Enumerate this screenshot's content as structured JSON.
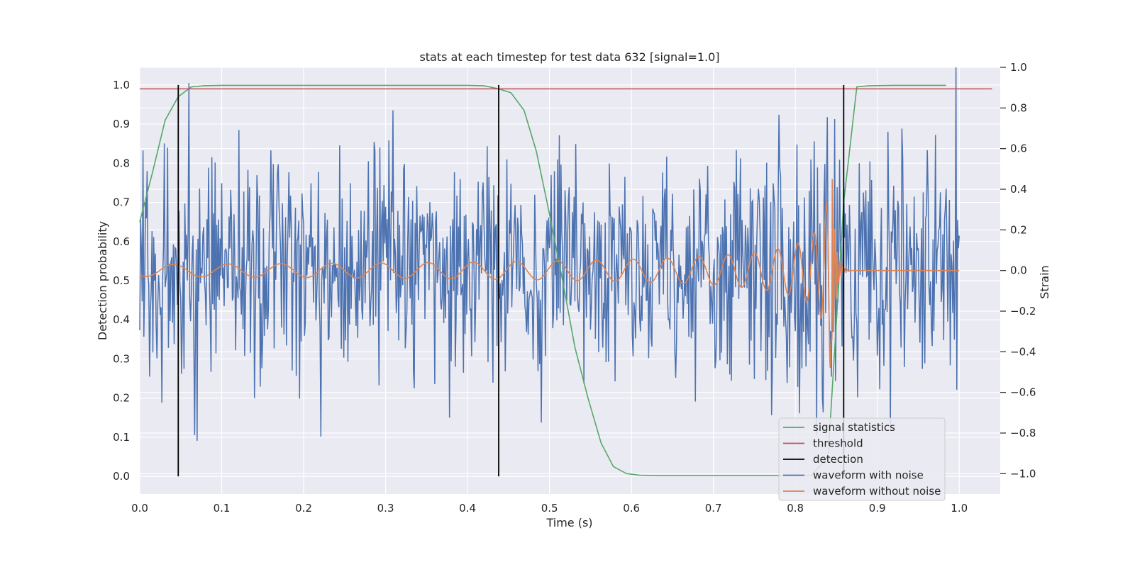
{
  "chart_data": {
    "type": "line",
    "title": "stats at each timestep for test data 632 [signal=1.0]",
    "xlabel": "Time (s)",
    "ylabel": "Detection probability",
    "y2label": "Strain",
    "xlim": [
      0.0,
      1.05
    ],
    "ylim": [
      -0.045,
      1.045
    ],
    "y2lim": [
      -1.1,
      1.0
    ],
    "xticks": [
      "0.0",
      "0.1",
      "0.2",
      "0.3",
      "0.4",
      "0.5",
      "0.6",
      "0.7",
      "0.8",
      "0.9",
      "1.0"
    ],
    "yticks": [
      "0.0",
      "0.1",
      "0.2",
      "0.3",
      "0.4",
      "0.5",
      "0.6",
      "0.7",
      "0.8",
      "0.9",
      "1.0"
    ],
    "y2ticks": [
      "−1.0",
      "−0.8",
      "−0.6",
      "−0.4",
      "−0.2",
      "0.0",
      "0.2",
      "0.4",
      "0.6",
      "0.8",
      "1.0"
    ],
    "grid": true,
    "legend_position": "lower-right",
    "series": [
      {
        "name": "signal statistics",
        "axis": "left",
        "color": "#55a868",
        "x": [
          0.0,
          0.016,
          0.031,
          0.047,
          0.063,
          0.078,
          0.1,
          0.2,
          0.3,
          0.4,
          0.42,
          0.438,
          0.453,
          0.469,
          0.484,
          0.5,
          0.516,
          0.531,
          0.547,
          0.563,
          0.578,
          0.594,
          0.61,
          0.63,
          0.7,
          0.8,
          0.82,
          0.84,
          0.859,
          0.875,
          0.89,
          0.92,
          0.984
        ],
        "y": [
          0.65,
          0.78,
          0.91,
          0.97,
          0.995,
          0.998,
          0.999,
          0.999,
          0.999,
          0.999,
          0.998,
          0.99,
          0.98,
          0.935,
          0.83,
          0.67,
          0.5,
          0.33,
          0.2,
          0.085,
          0.025,
          0.007,
          0.003,
          0.002,
          0.002,
          0.002,
          0.003,
          0.05,
          0.7,
          0.995,
          0.998,
          0.999,
          0.999
        ]
      },
      {
        "name": "threshold",
        "axis": "left",
        "color": "#c44e52",
        "value": 0.99,
        "x_range": [
          0.0,
          1.04
        ]
      },
      {
        "name": "detection",
        "axis": "left",
        "color": "#000000",
        "x": [
          0.047,
          0.438,
          0.859
        ],
        "y_range": [
          0.0,
          1.0
        ]
      },
      {
        "name": "waveform with noise",
        "axis": "right",
        "color": "#4c72b0",
        "x_range": [
          0.0,
          1.0
        ],
        "amplitude": 0.28,
        "seed": 632
      },
      {
        "name": "waveform without noise",
        "axis": "right",
        "color": "#dd8452",
        "x_range": [
          0.0,
          1.0
        ],
        "merger_time": 0.845,
        "base_amplitude": 0.03
      }
    ]
  }
}
